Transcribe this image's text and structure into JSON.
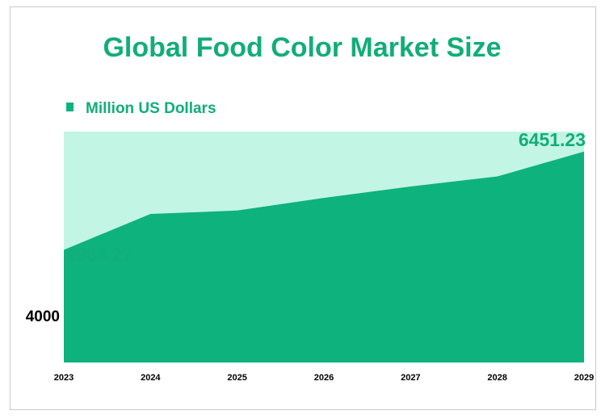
{
  "chart_data": {
    "type": "area",
    "title": "Global Food Color Market Size",
    "legend": {
      "label": "Million US Dollars",
      "placement": "top-left"
    },
    "x": [
      "2023",
      "2024",
      "2025",
      "2026",
      "2027",
      "2028",
      "2029"
    ],
    "series": [
      {
        "name": "Million US Dollars",
        "values": [
          4983.27,
          5520,
          5570,
          5760,
          5930,
          6080,
          6451.23
        ]
      }
    ],
    "data_labels": [
      {
        "index": 0,
        "text": "4983.27"
      },
      {
        "index": 6,
        "text": "6451.23"
      }
    ],
    "y_ticks": [
      4000
    ],
    "ylim": [
      3300,
      6750
    ],
    "grid": false,
    "colors": {
      "fill": "#0eb27c",
      "background_band": "#c2f5e4",
      "title": "#12ad78",
      "label": "#12ad78",
      "axis_text": "#000000"
    }
  }
}
